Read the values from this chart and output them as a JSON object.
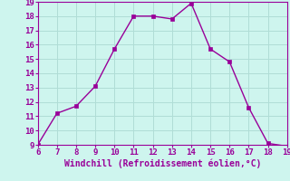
{
  "x": [
    6,
    7,
    8,
    9,
    10,
    11,
    12,
    13,
    14,
    15,
    16,
    17,
    18,
    19
  ],
  "y": [
    9,
    11.2,
    11.7,
    13.1,
    15.7,
    18.0,
    18.0,
    17.8,
    18.9,
    15.7,
    14.8,
    11.6,
    9.1,
    8.9
  ],
  "line_color": "#990099",
  "marker_color": "#990099",
  "bg_color": "#cef5ee",
  "grid_color": "#b0ddd6",
  "xlabel": "Windchill (Refroidissement éolien,°C)",
  "xlim": [
    6,
    19
  ],
  "ylim": [
    9,
    19
  ],
  "xticks": [
    6,
    7,
    8,
    9,
    10,
    11,
    12,
    13,
    14,
    15,
    16,
    17,
    18,
    19
  ],
  "yticks": [
    9,
    10,
    11,
    12,
    13,
    14,
    15,
    16,
    17,
    18,
    19
  ],
  "tick_color": "#990099",
  "label_color": "#990099",
  "linewidth": 1.0,
  "markersize": 2.5,
  "xlabel_fontsize": 7.0,
  "tick_fontsize": 6.5
}
